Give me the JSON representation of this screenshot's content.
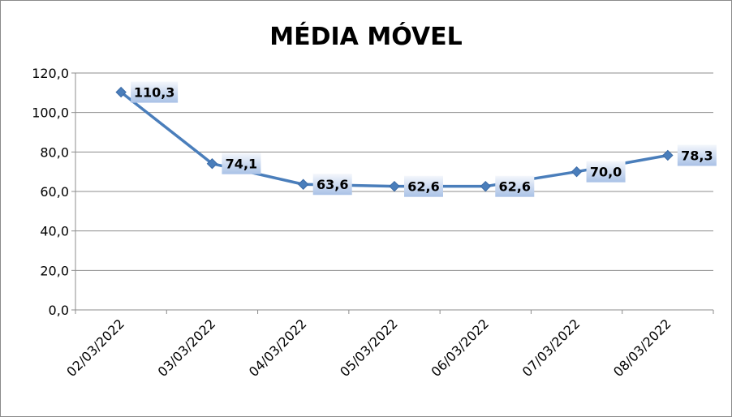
{
  "chart_data": {
    "type": "line",
    "title": "MÉDIA MÓVEL",
    "xlabel": "",
    "ylabel": "",
    "categories": [
      "02/03/2022",
      "03/03/2022",
      "04/03/2022",
      "05/03/2022",
      "06/03/2022",
      "07/03/2022",
      "08/03/2022"
    ],
    "series": [
      {
        "values": [
          110.3,
          74.1,
          63.6,
          62.6,
          62.6,
          70.0,
          78.3
        ],
        "labels": [
          "110,3",
          "74,1",
          "63,6",
          "62,6",
          "62,6",
          "70,0",
          "78,3"
        ]
      }
    ],
    "ylim": [
      0,
      120
    ],
    "yticks": [
      0,
      20,
      40,
      60,
      80,
      100,
      120
    ],
    "ytick_labels": [
      "0,0",
      "20,0",
      "40,0",
      "60,0",
      "80,0",
      "100,0",
      "120,0"
    ],
    "grid": true,
    "legend": "none",
    "colors": {
      "line": "#4a7ebb",
      "marker": "#4a7ebb",
      "label_bg_top": "#f4f7fc",
      "label_bg_bottom": "#a9c1e6",
      "grid": "#8c8c8c",
      "axis": "#8c8c8c"
    }
  }
}
